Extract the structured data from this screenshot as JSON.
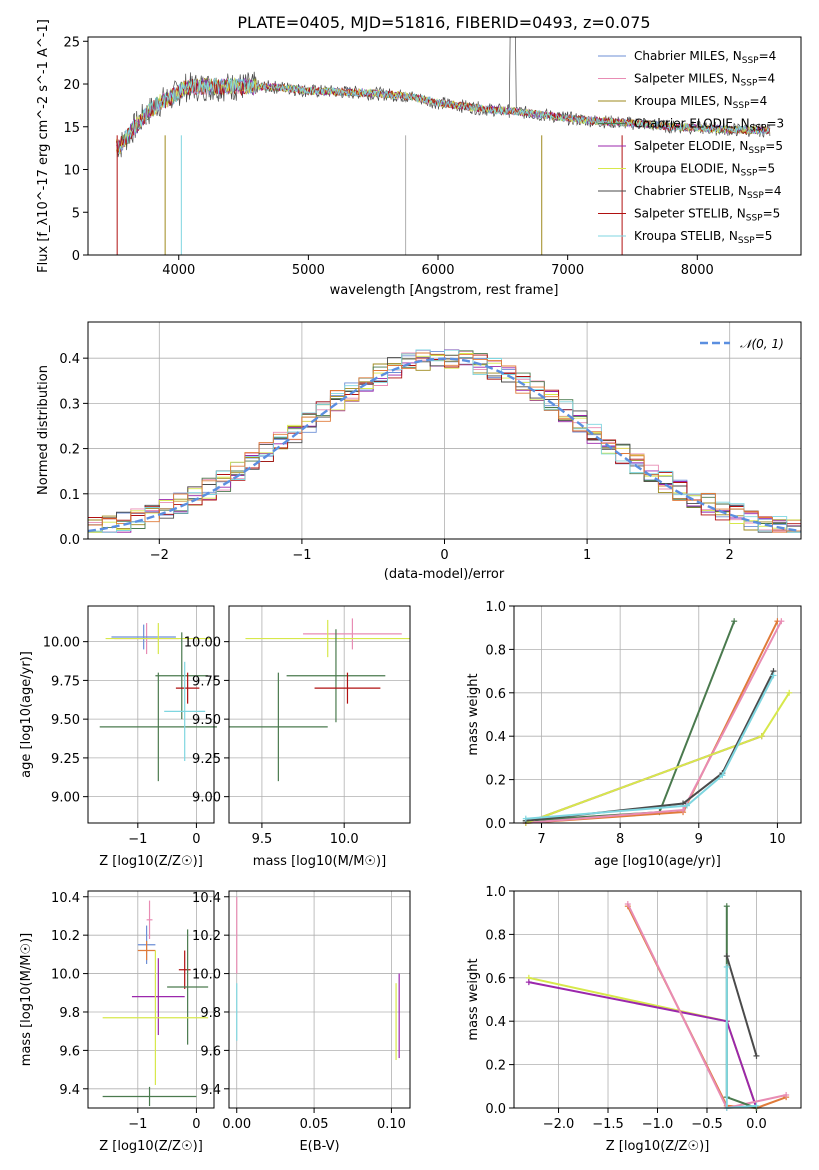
{
  "chart_data": [
    {
      "type": "line",
      "title": "PLATE=0405, MJD=51816, FIBERID=0493, z=0.075",
      "xlabel": "wavelength [Angstrom, rest frame]",
      "ylabel": "Flux [f_λ10^-17 erg cm^-2 s^-1 A^-1]",
      "xlim": [
        3300,
        8800
      ],
      "ylim": [
        0,
        25.5
      ],
      "xticks": [
        "4000",
        "5000",
        "6000",
        "7000",
        "8000"
      ],
      "yticks": [
        "0",
        "5",
        "10",
        "15",
        "20",
        "25"
      ],
      "grid": false,
      "legend_position": "upper right",
      "x": [
        3550,
        3650,
        3750,
        3850,
        3950,
        4050,
        4200,
        4400,
        4600,
        4800,
        5000,
        5200,
        5400,
        5600,
        5800,
        6000,
        6200,
        6400,
        6600,
        6800,
        7000,
        7200,
        7400,
        7600,
        7800,
        8000,
        8200,
        8400
      ],
      "data_series": [
        {
          "values": [
            12.8,
            14.8,
            16.5,
            17.8,
            18.5,
            19.6,
            19.7,
            19.7,
            19.7,
            19.6,
            19.2,
            19.1,
            19.0,
            18.8,
            18.5,
            17.8,
            17.4,
            17.0,
            16.8,
            16.4,
            16.0,
            15.7,
            15.5,
            15.3,
            15.0,
            14.9,
            14.7,
            14.6
          ]
        }
      ],
      "series": [
        {
          "name": "Chabrier MILES, N_SSP=4",
          "color": "#6d8fd6"
        },
        {
          "name": "Salpeter MILES, N_SSP=4",
          "color": "#e88cb4"
        },
        {
          "name": "Kroupa MILES, N_SSP=4",
          "color": "#9e8a1e"
        },
        {
          "name": "Chabrier ELODIE, N_SSP=3",
          "color": "#4a7a4e"
        },
        {
          "name": "Salpeter ELODIE, N_SSP=5",
          "color": "#9b27ac"
        },
        {
          "name": "Kroupa ELODIE, N_SSP=5",
          "color": "#d7e84b"
        },
        {
          "name": "Chabrier STELIB, N_SSP=4",
          "color": "#4a4a4a"
        },
        {
          "name": "Salpeter STELIB, N_SSP=5",
          "color": "#b01010"
        },
        {
          "name": "Kroupa STELIB, N_SSP=5",
          "color": "#7fd6e0"
        }
      ]
    },
    {
      "type": "line",
      "xlabel": "(data-model)/error",
      "ylabel": "Normed distribution",
      "xlim": [
        -2.5,
        2.5
      ],
      "ylim": [
        0,
        0.48
      ],
      "xticks": [
        "−2",
        "−1",
        "0",
        "1",
        "2"
      ],
      "yticks": [
        "0.0",
        "0.1",
        "0.2",
        "0.3",
        "0.4"
      ],
      "grid": true,
      "legend_position": "upper right",
      "legend": "𝒩(0, 1)",
      "x": [
        -2.4,
        -2.2,
        -2.0,
        -1.8,
        -1.6,
        -1.4,
        -1.2,
        -1.0,
        -0.8,
        -0.6,
        -0.4,
        -0.2,
        0.0,
        0.2,
        0.4,
        0.6,
        0.8,
        1.0,
        1.2,
        1.4,
        1.6,
        1.8,
        2.0,
        2.2,
        2.4
      ],
      "histogram_values": [
        0.03,
        0.04,
        0.06,
        0.09,
        0.12,
        0.16,
        0.2,
        0.25,
        0.3,
        0.34,
        0.37,
        0.39,
        0.41,
        0.39,
        0.37,
        0.34,
        0.29,
        0.24,
        0.2,
        0.15,
        0.12,
        0.09,
        0.06,
        0.045,
        0.03
      ]
    },
    {
      "type": "scatter",
      "xlabel": "Z [log10(Z/Z☉)]",
      "ylabel": "age  [log10(age/yr)]",
      "xticks": [
        "−1",
        "0"
      ],
      "yticks": [
        "9.00",
        "9.25",
        "9.50",
        "9.75",
        "10.00"
      ],
      "xlim": [
        -1.85,
        0.3
      ],
      "ylim": [
        8.83,
        10.23
      ],
      "grid": true,
      "points": [
        {
          "x": -0.85,
          "y": 10.02,
          "xerr": 0.55,
          "yerr": 0.1,
          "color": "#e88cb4"
        },
        {
          "x": -0.9,
          "y": 10.03,
          "xerr": 0.55,
          "yerr": 0.08,
          "color": "#6d8fd6"
        },
        {
          "x": -0.65,
          "y": 10.02,
          "xerr": 0.9,
          "yerr": 0.1,
          "color": "#d7e84b"
        },
        {
          "x": -0.25,
          "y": 9.78,
          "xerr": 0.45,
          "yerr": 0.28,
          "color": "#4a7a4e"
        },
        {
          "x": -0.15,
          "y": 9.7,
          "xerr": 0.2,
          "yerr": 0.1,
          "color": "#b01010"
        },
        {
          "x": -0.65,
          "y": 9.45,
          "xerr": 1.0,
          "yerr": 0.35,
          "color": "#4a7a4e"
        },
        {
          "x": -0.2,
          "y": 9.55,
          "xerr": 0.35,
          "yerr": 0.32,
          "color": "#7fd6e0"
        }
      ]
    },
    {
      "type": "scatter",
      "xlabel": "mass [log10(M/M☉)]",
      "xticks": [
        "9.5",
        "10.0"
      ],
      "yticks": [
        "9.00",
        "9.25",
        "9.50",
        "9.75",
        "10.00"
      ],
      "xlim": [
        9.3,
        10.4
      ],
      "ylim": [
        8.83,
        10.23
      ],
      "grid": true,
      "points": [
        {
          "x": 10.05,
          "y": 10.05,
          "xerr": 0.3,
          "yerr": 0.1,
          "color": "#e88cb4"
        },
        {
          "x": 9.9,
          "y": 10.02,
          "xerr": 0.5,
          "yerr": 0.12,
          "color": "#d7e84b"
        },
        {
          "x": 9.95,
          "y": 9.78,
          "xerr": 0.3,
          "yerr": 0.3,
          "color": "#4a7a4e"
        },
        {
          "x": 10.02,
          "y": 9.7,
          "xerr": 0.2,
          "yerr": 0.1,
          "color": "#b01010"
        },
        {
          "x": 9.6,
          "y": 9.45,
          "xerr": 0.3,
          "yerr": 0.35,
          "color": "#4a7a4e"
        }
      ]
    },
    {
      "type": "line",
      "xlabel": "age  [log10(age/yr)]",
      "ylabel": "mass weight",
      "xticks": [
        "7",
        "8",
        "9",
        "10"
      ],
      "yticks": [
        "0.0",
        "0.2",
        "0.4",
        "0.6",
        "0.8",
        "1.0"
      ],
      "xlim": [
        6.65,
        10.3
      ],
      "ylim": [
        0,
        1.0
      ],
      "grid": true,
      "series_points": [
        {
          "color": "#4a7a4e",
          "x": [
            6.8,
            8.5,
            9.45
          ],
          "y": [
            0.01,
            0.05,
            0.93
          ]
        },
        {
          "color": "#e07b3a",
          "x": [
            6.8,
            8.8,
            10.0
          ],
          "y": [
            0.0,
            0.05,
            0.93
          ]
        },
        {
          "color": "#e88cb4",
          "x": [
            6.8,
            8.8,
            10.05
          ],
          "y": [
            0.0,
            0.06,
            0.93
          ]
        },
        {
          "color": "#9b27ac",
          "x": [
            6.8,
            9.8
          ],
          "y": [
            0.0,
            0.4
          ]
        },
        {
          "color": "#d7e84b",
          "x": [
            6.8,
            9.8,
            10.15
          ],
          "y": [
            0.0,
            0.4,
            0.6
          ]
        },
        {
          "color": "#4a4a4a",
          "x": [
            6.8,
            8.8,
            9.3,
            9.95
          ],
          "y": [
            0.01,
            0.09,
            0.23,
            0.7
          ]
        },
        {
          "color": "#7fd6e0",
          "x": [
            6.8,
            8.85,
            9.3,
            9.95
          ],
          "y": [
            0.02,
            0.08,
            0.22,
            0.68
          ]
        }
      ]
    },
    {
      "type": "scatter",
      "xlabel": "Z [log10(Z/Z☉)]",
      "ylabel": "mass [log10(M/M☉)]",
      "xticks": [
        "−1",
        "0"
      ],
      "yticks": [
        "9.4",
        "9.6",
        "9.8",
        "10.0",
        "10.2",
        "10.4"
      ],
      "xlim": [
        -1.85,
        0.3
      ],
      "ylim": [
        9.3,
        10.43
      ],
      "grid": true,
      "points": [
        {
          "x": -0.8,
          "y": 10.28,
          "xerr": 0.05,
          "yerr": 0.1,
          "color": "#e88cb4"
        },
        {
          "x": -0.85,
          "y": 10.15,
          "xerr": 0.15,
          "yerr": 0.1,
          "color": "#6d8fd6"
        },
        {
          "x": -0.85,
          "y": 10.12,
          "xerr": 0.15,
          "yerr": 0.05,
          "color": "#e07b3a"
        },
        {
          "x": -0.2,
          "y": 10.02,
          "xerr": 0.1,
          "yerr": 0.1,
          "color": "#b01010"
        },
        {
          "x": -0.15,
          "y": 9.93,
          "xerr": 0.35,
          "yerr": 0.3,
          "color": "#4a7a4e"
        },
        {
          "x": -0.65,
          "y": 9.88,
          "xerr": 0.45,
          "yerr": 0.2,
          "color": "#9b27ac"
        },
        {
          "x": -0.7,
          "y": 9.77,
          "xerr": 0.9,
          "yerr": 0.35,
          "color": "#d7e84b"
        },
        {
          "x": -0.8,
          "y": 9.36,
          "xerr": 0.8,
          "yerr": 0.05,
          "color": "#4a7a4e"
        }
      ]
    },
    {
      "type": "scatter",
      "xlabel": "E(B-V)",
      "xticks": [
        "0.00",
        "0.05",
        "0.10"
      ],
      "yticks": [
        "9.4",
        "9.6",
        "9.8",
        "10.0",
        "10.2",
        "10.4"
      ],
      "xlim": [
        -0.005,
        0.112
      ],
      "ylim": [
        9.3,
        10.43
      ],
      "grid": true,
      "points": [
        {
          "x": 0.0,
          "y": 10.2,
          "xerr": 0.0,
          "yerr": 0.2,
          "color": "#e88cb4"
        },
        {
          "x": 0.0,
          "y": 9.8,
          "xerr": 0.0,
          "yerr": 0.15,
          "color": "#7fd6e0"
        },
        {
          "x": 0.103,
          "y": 9.75,
          "xerr": 0.0,
          "yerr": 0.2,
          "color": "#d7e84b"
        },
        {
          "x": 0.105,
          "y": 9.78,
          "xerr": 0.0,
          "yerr": 0.22,
          "color": "#9b27ac"
        }
      ]
    },
    {
      "type": "line",
      "xlabel": "Z [log10(Z/Z☉)]",
      "ylabel": "mass weight",
      "xticks": [
        "−2.0",
        "−1.5",
        "−1.0",
        "−0.5",
        "0.0"
      ],
      "yticks": [
        "0.0",
        "0.2",
        "0.4",
        "0.6",
        "0.8",
        "1.0"
      ],
      "xlim": [
        -2.45,
        0.45
      ],
      "ylim": [
        0,
        1.0
      ],
      "grid": true,
      "series_points": [
        {
          "color": "#d7e84b",
          "x": [
            -2.3,
            -0.3,
            0.0
          ],
          "y": [
            0.6,
            0.4,
            0.0
          ]
        },
        {
          "color": "#9b27ac",
          "x": [
            -2.3,
            -0.3,
            0.0
          ],
          "y": [
            0.58,
            0.4,
            0.0
          ]
        },
        {
          "color": "#e07b3a",
          "x": [
            -1.3,
            -0.3,
            0.0,
            0.3
          ],
          "y": [
            0.93,
            0.01,
            0.0,
            0.05
          ]
        },
        {
          "color": "#e88cb4",
          "x": [
            -1.3,
            -0.3,
            0.3
          ],
          "y": [
            0.94,
            0.0,
            0.06
          ]
        },
        {
          "color": "#4a7a4e",
          "x": [
            -0.3,
            -0.3,
            0.0
          ],
          "y": [
            0.93,
            0.05,
            0.0
          ]
        },
        {
          "color": "#4a4a4a",
          "x": [
            -0.3,
            0.0
          ],
          "y": [
            0.7,
            0.24
          ]
        },
        {
          "color": "#7fd6e0",
          "x": [
            -0.3,
            -0.3,
            0.0
          ],
          "y": [
            0.65,
            0.0,
            0.01
          ]
        }
      ]
    }
  ]
}
